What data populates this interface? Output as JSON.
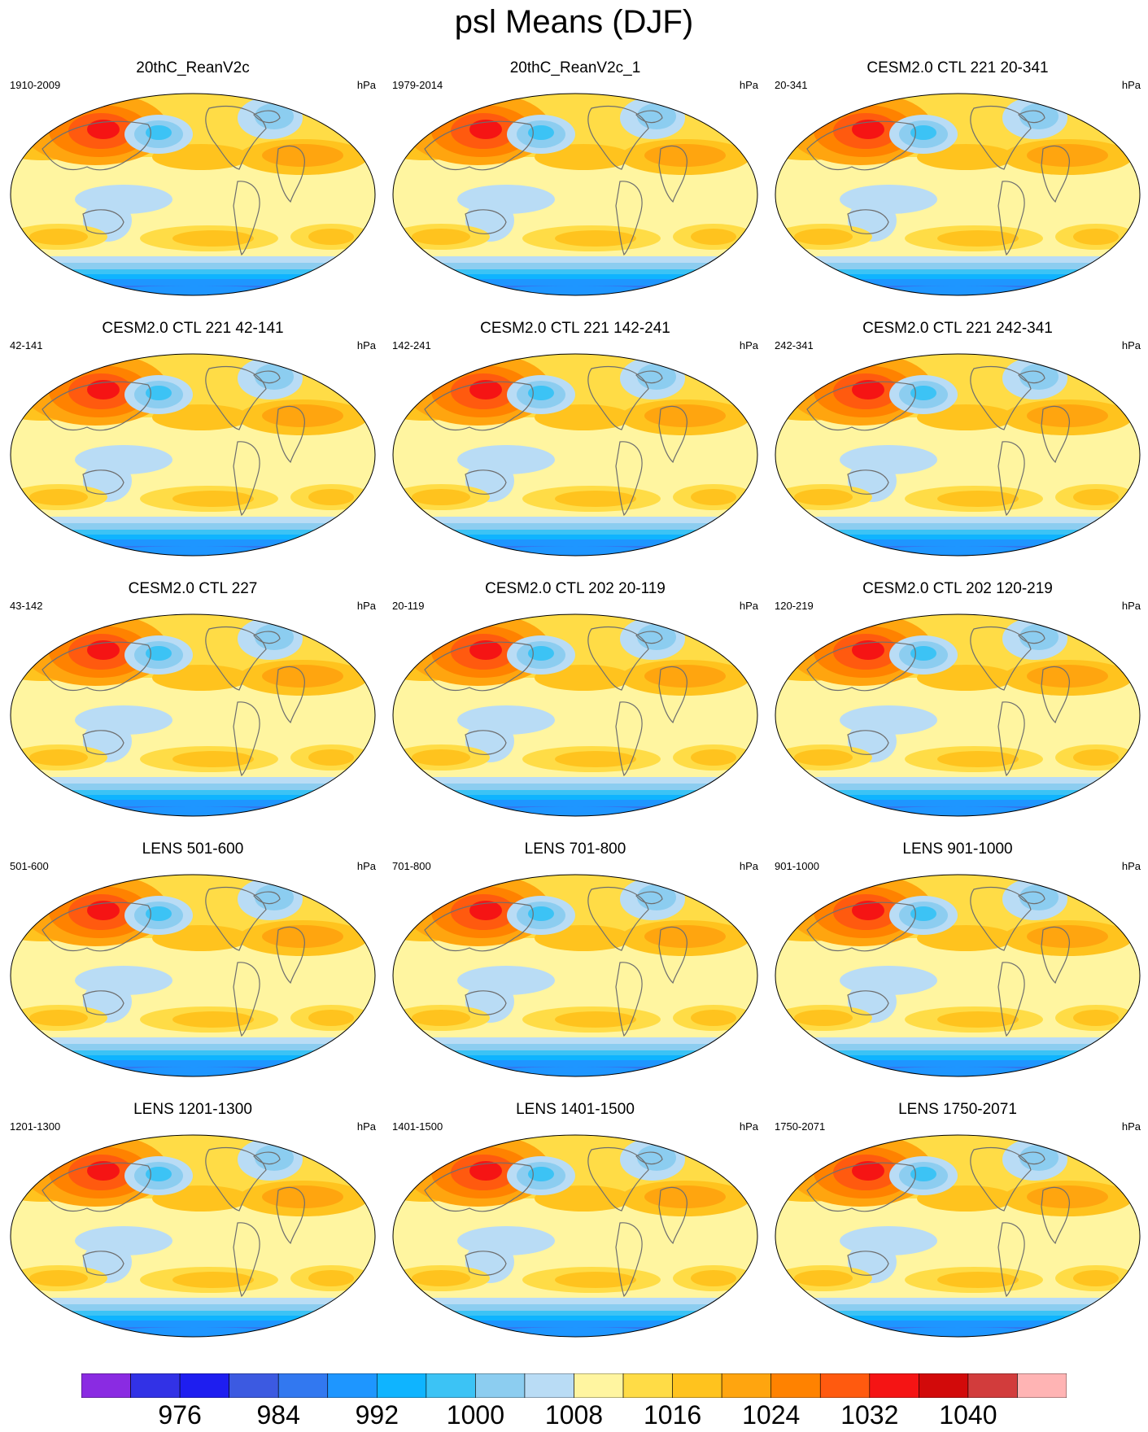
{
  "title": "psl Means (DJF)",
  "panels": [
    {
      "title": "20thC_ReanV2c",
      "left": "1910-2009",
      "right": "hPa"
    },
    {
      "title": "20thC_ReanV2c_1",
      "left": "1979-2014",
      "right": "hPa"
    },
    {
      "title": "CESM2.0 CTL 221 20-341",
      "left": "20-341",
      "right": "hPa"
    },
    {
      "title": "CESM2.0 CTL 221 42-141",
      "left": "42-141",
      "right": "hPa"
    },
    {
      "title": "CESM2.0 CTL 221 142-241",
      "left": "142-241",
      "right": "hPa"
    },
    {
      "title": "CESM2.0 CTL 221 242-341",
      "left": "242-341",
      "right": "hPa"
    },
    {
      "title": "CESM2.0 CTL 227",
      "left": "43-142",
      "right": "hPa"
    },
    {
      "title": "CESM2.0 CTL 202 20-119",
      "left": "20-119",
      "right": "hPa"
    },
    {
      "title": "CESM2.0 CTL 202 120-219",
      "left": "120-219",
      "right": "hPa"
    },
    {
      "title": "LENS 501-600",
      "left": "501-600",
      "right": "hPa"
    },
    {
      "title": "LENS 701-800",
      "left": "701-800",
      "right": "hPa"
    },
    {
      "title": "LENS 901-1000",
      "left": "901-1000",
      "right": "hPa"
    },
    {
      "title": "LENS 1201-1300",
      "left": "1201-1300",
      "right": "hPa"
    },
    {
      "title": "LENS 1401-1500",
      "left": "1401-1500",
      "right": "hPa"
    },
    {
      "title": "LENS 1750-2071",
      "left": "1750-2071",
      "right": "hPa"
    }
  ],
  "colorbar": {
    "colors": [
      "#8a2be2",
      "#3232e6",
      "#1e1ef0",
      "#3c5ae1",
      "#3278f0",
      "#1e96ff",
      "#0fb4ff",
      "#3cc3f5",
      "#8ccdf0",
      "#b9dcf5",
      "#fff5a0",
      "#ffdc46",
      "#ffc31e",
      "#ffa50f",
      "#ff8200",
      "#ff5a0f",
      "#f51414",
      "#d20a0a",
      "#d23c3c",
      "#ffb4b4"
    ],
    "labels": [
      "976",
      "984",
      "992",
      "1000",
      "1008",
      "1016",
      "1024",
      "1032",
      "1040"
    ]
  }
}
